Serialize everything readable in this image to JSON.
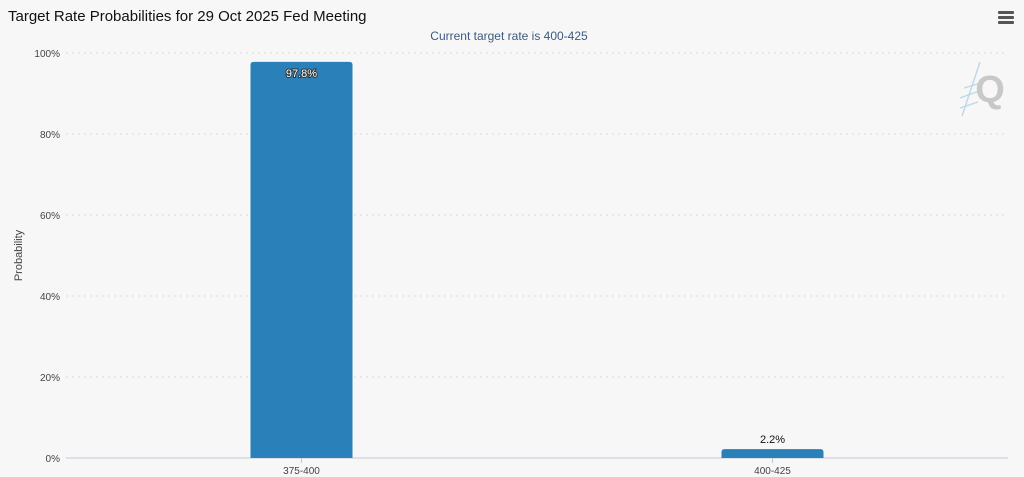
{
  "header": {
    "title": "Target Rate Probabilities for 29 Oct 2025 Fed Meeting",
    "menu_icon": "hamburger-menu-icon"
  },
  "watermark_icon": "q-logo-icon",
  "chart_data": {
    "type": "bar",
    "title": "Target Rate Probabilities for 29 Oct 2025 Fed Meeting",
    "subtitle": "Current target rate is 400-425",
    "xlabel": "",
    "ylabel": "Probability",
    "categories": [
      "375-400",
      "400-425"
    ],
    "values": [
      97.8,
      2.2
    ],
    "data_labels": [
      "97.8%",
      "2.2%"
    ],
    "ylim": [
      0,
      100
    ],
    "yticks": [
      0,
      20,
      40,
      60,
      80,
      100
    ],
    "ytick_labels": [
      "0%",
      "20%",
      "40%",
      "60%",
      "80%",
      "100%"
    ],
    "grid": true,
    "bar_color": "#2a80b9"
  }
}
